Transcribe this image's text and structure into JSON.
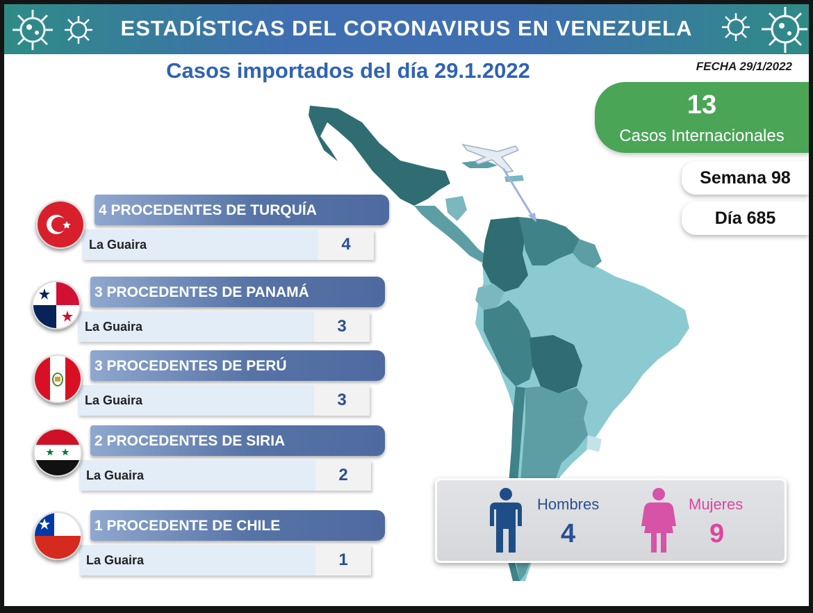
{
  "header": {
    "title": "ESTADÍSTICAS DEL CORONAVIRUS EN VENEZUELA"
  },
  "subtitle": "Casos importados del día 29.1.2022",
  "date_label": "FECHA 29/1/2022",
  "international": {
    "value": "13",
    "label": "Casos Internacionales",
    "color": "#4aa557"
  },
  "week_label": "Semana 98",
  "day_label": "Día 685",
  "icons": [
    "virus-icon",
    "airplane-icon",
    "man-icon",
    "woman-icon"
  ],
  "countries": [
    {
      "title": "4 PROCEDENTES DE TURQUÍA",
      "location": "La Guaira",
      "count": "4",
      "flag": "turkey-flag-icon"
    },
    {
      "title": "3 PROCEDENTES DE PANAMÁ",
      "location": "La Guaira",
      "count": "3",
      "flag": "panama-flag-icon"
    },
    {
      "title": "3 PROCEDENTES DE PERÚ",
      "location": "La Guaira",
      "count": "3",
      "flag": "peru-flag-icon"
    },
    {
      "title": "2 PROCEDENTES DE SIRIA",
      "location": "La Guaira",
      "count": "2",
      "flag": "syria-flag-icon"
    },
    {
      "title": "1 PROCEDENTE DE CHILE",
      "location": "La Guaira",
      "count": "1",
      "flag": "chile-flag-icon"
    }
  ],
  "gender": {
    "men_label": "Hombres",
    "men_value": "4",
    "men_color": "#2a4f93",
    "women_label": "Mujeres",
    "women_value": "9",
    "women_color": "#e0449f"
  },
  "colors": {
    "banner": "#3f6fb0",
    "subtitle": "#2f63b3",
    "country_header": "#5673a6",
    "map_dark": "#2f6d72",
    "map_light": "#8ccad2"
  }
}
